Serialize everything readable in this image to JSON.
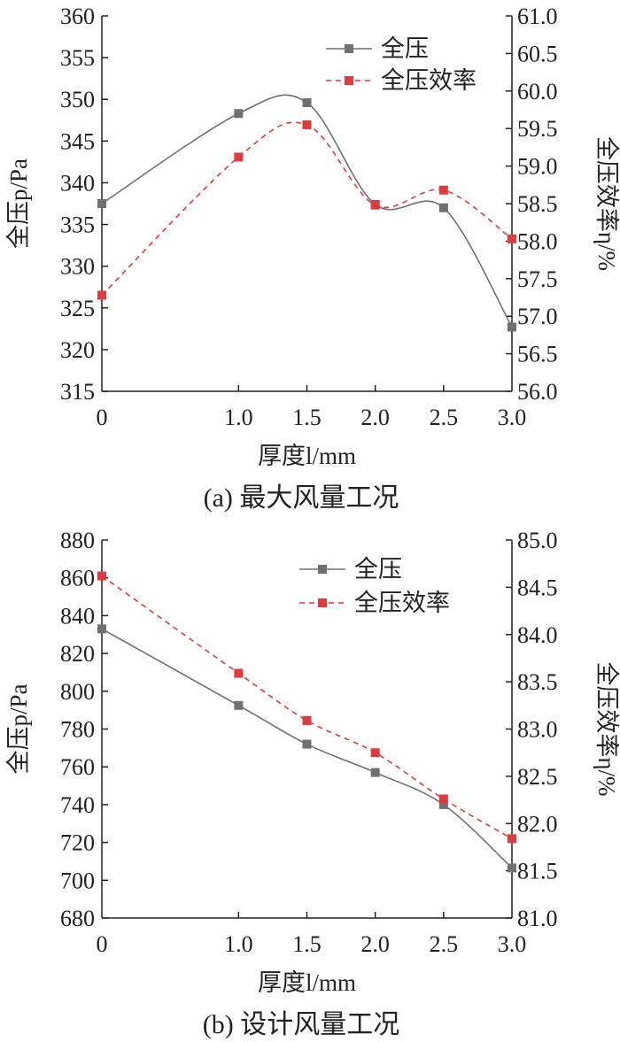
{
  "chart_data": [
    {
      "type": "line",
      "caption": "(a)  最大风量工况",
      "xlabel": "厚度l/mm",
      "ylabel_left": "全压p/Pa",
      "ylabel_right": "全压效率η/%",
      "x": [
        0,
        1.0,
        1.5,
        2.0,
        2.5,
        3.0
      ],
      "x_tick_labels": [
        "0",
        "1.0",
        "1.5",
        "2.0",
        "2.5",
        "3.0"
      ],
      "ylim_left": [
        315,
        360
      ],
      "y_ticks_left": [
        "360",
        "355",
        "350",
        "345",
        "340",
        "335",
        "330",
        "325",
        "320",
        "315"
      ],
      "ylim_right": [
        56.0,
        61.0
      ],
      "y_ticks_right": [
        "61.0",
        "60.5",
        "60.0",
        "59.5",
        "59.0",
        "58.5",
        "58.0",
        "57.5",
        "57.0",
        "56.5",
        "56.0"
      ],
      "legend_position": "top-right",
      "series": [
        {
          "name": "全压",
          "axis": "left",
          "style": "solid",
          "color": "#707070",
          "values": [
            337.5,
            348.3,
            349.6,
            337.4,
            337.0,
            322.7
          ]
        },
        {
          "name": "全压效率",
          "axis": "right",
          "style": "dashed",
          "color": "#e03a3a",
          "values": [
            57.28,
            59.12,
            59.55,
            58.48,
            58.68,
            58.03
          ]
        }
      ]
    },
    {
      "type": "line",
      "caption": "(b)  设计风量工况",
      "xlabel": "厚度l/mm",
      "ylabel_left": "全压p/Pa",
      "ylabel_right": "全压效率η/%",
      "x": [
        0,
        1.0,
        1.5,
        2.0,
        2.5,
        3.0
      ],
      "x_tick_labels": [
        "0",
        "1.0",
        "1.5",
        "2.0",
        "2.5",
        "3.0"
      ],
      "ylim_left": [
        680,
        880
      ],
      "y_ticks_left": [
        "880",
        "860",
        "840",
        "820",
        "800",
        "780",
        "760",
        "740",
        "720",
        "700",
        "680"
      ],
      "ylim_right": [
        81.0,
        85.0
      ],
      "y_ticks_right": [
        "85.0",
        "84.5",
        "84.0",
        "83.5",
        "83.0",
        "82.5",
        "82.0",
        "81.5",
        "81.0"
      ],
      "legend_position": "top-right",
      "series": [
        {
          "name": "全压",
          "axis": "left",
          "style": "solid",
          "color": "#707070",
          "values": [
            833,
            792.5,
            772,
            757,
            740,
            706.5
          ]
        },
        {
          "name": "全压效率",
          "axis": "right",
          "style": "dashed",
          "color": "#e03a3a",
          "values": [
            84.62,
            83.59,
            83.09,
            82.75,
            82.26,
            81.84
          ]
        }
      ]
    }
  ]
}
